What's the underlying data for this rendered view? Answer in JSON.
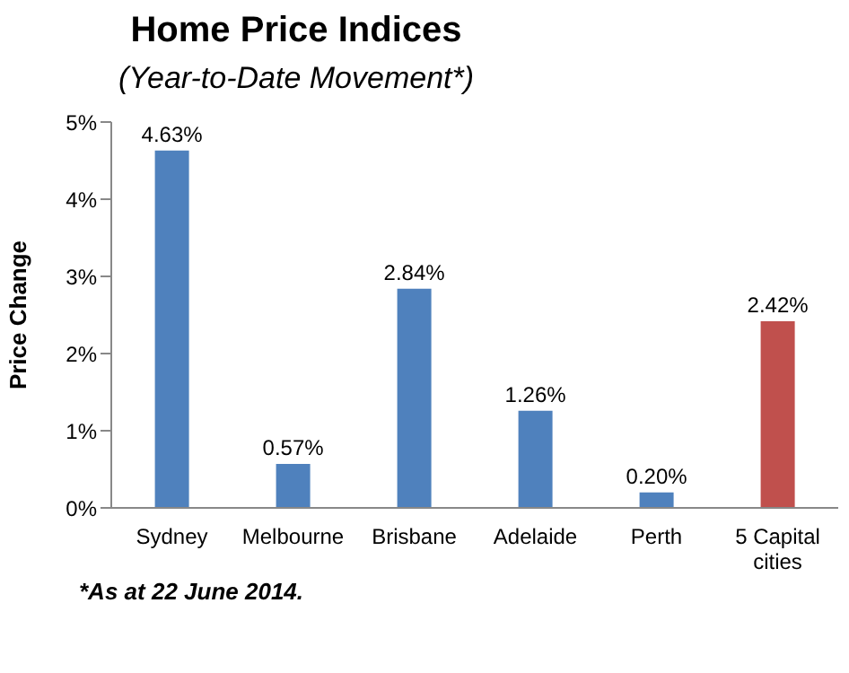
{
  "chart_data": {
    "type": "bar",
    "title": "Home Price Indices",
    "subtitle": "(Year-to-Date Movement*)",
    "ylabel": "Price Change",
    "categories": [
      "Sydney",
      "Melbourne",
      "Brisbane",
      "Adelaide",
      "Perth",
      "5 Capital cities"
    ],
    "values": [
      4.63,
      0.57,
      2.84,
      1.26,
      0.2,
      2.42
    ],
    "colors": [
      "#4f81bd",
      "#4f81bd",
      "#4f81bd",
      "#4f81bd",
      "#4f81bd",
      "#c0504d"
    ],
    "value_labels": [
      "4.63%",
      "0.57%",
      "2.84%",
      "1.26%",
      "0.20%",
      "2.42%"
    ],
    "ylim": [
      0,
      5
    ],
    "yticks": [
      {
        "value": 0,
        "label": "0%"
      },
      {
        "value": 1,
        "label": "1%"
      },
      {
        "value": 2,
        "label": "2%"
      },
      {
        "value": 3,
        "label": "3%"
      },
      {
        "value": 4,
        "label": "4%"
      },
      {
        "value": 5,
        "label": "5%"
      }
    ],
    "grid": false,
    "annotations": [
      "*As at 22 June 2014."
    ]
  }
}
